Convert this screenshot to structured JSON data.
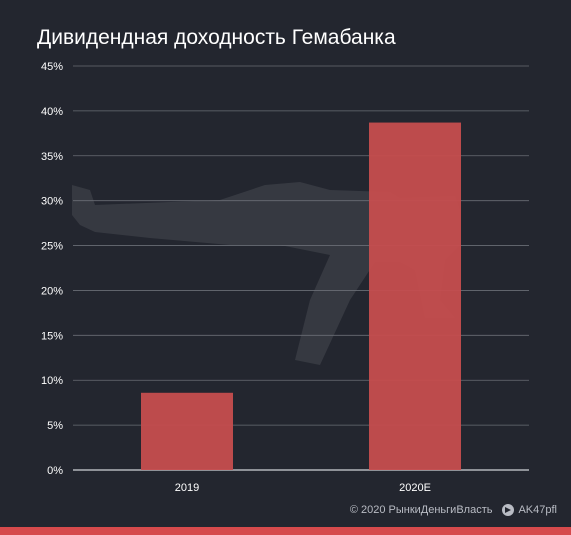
{
  "title": "Дивидендная доходность Гемабанка",
  "colors": {
    "background": "#23262f",
    "bar": "#c64d4e",
    "accent": "#d64a4c",
    "grid": "#6a6d75",
    "text": "#ffffff"
  },
  "chart_data": {
    "type": "bar",
    "title": "Дивидендная доходность Гемабанка",
    "categories": [
      "2019",
      "2020E"
    ],
    "values": [
      8.6,
      38.7
    ],
    "ylim": [
      0,
      45
    ],
    "yticks": [
      "0%",
      "5%",
      "10%",
      "15%",
      "20%",
      "25%",
      "30%",
      "35%",
      "40%",
      "45%"
    ],
    "ytick_values": [
      0,
      5,
      10,
      15,
      20,
      25,
      30,
      35,
      40,
      45
    ],
    "xlabel": "",
    "ylabel": "",
    "grid": true,
    "legend": false
  },
  "footer": {
    "copyright": "© 2020  РынкиДеньгиВласть",
    "telegram": "AK47pfl",
    "telegram_icon": "telegram-icon"
  },
  "watermark_icon": "rifle-silhouette"
}
